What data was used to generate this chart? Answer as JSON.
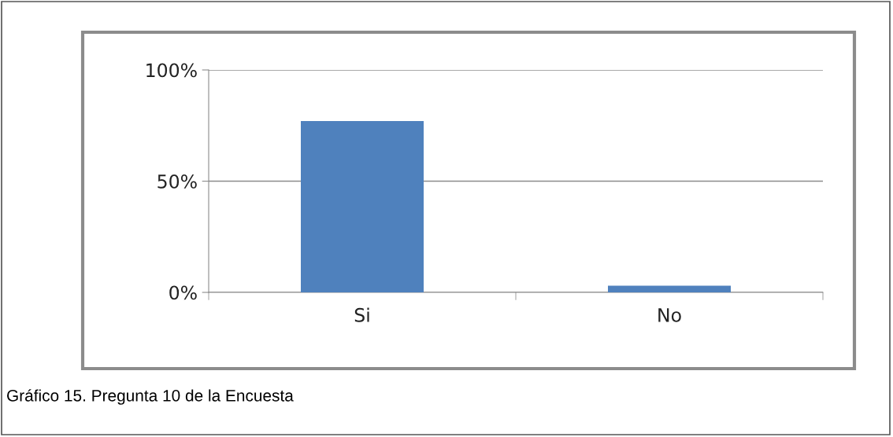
{
  "chart_data": {
    "type": "bar",
    "categories": [
      "Si",
      "No"
    ],
    "values": [
      77,
      3
    ],
    "color": "#4f81bd",
    "ylim": [
      0,
      100
    ],
    "yticks": [
      {
        "value": 0,
        "label": "0%"
      },
      {
        "value": 50,
        "label": "50%"
      },
      {
        "value": 100,
        "label": "100%"
      }
    ],
    "grid": "y",
    "legend": false,
    "annotations": [
      "Gráfico 15. Pregunta 10 de la Encuesta"
    ]
  }
}
